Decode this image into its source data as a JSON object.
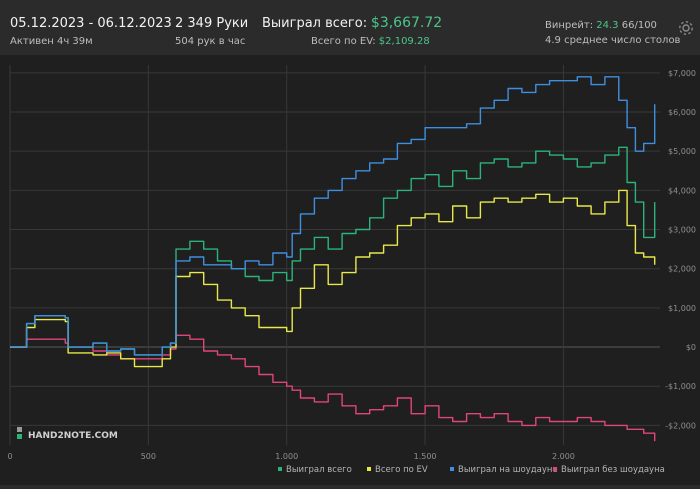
{
  "header": {
    "date_range": "05.12.2023 - 06.12.2023",
    "active_label": "Активен 4ч 39м",
    "hands": "2 349 Руки",
    "hands_per_hour": "504 рук в час",
    "won_total_label": "Выиграл всего:",
    "won_total_value": "$3,667.72",
    "ev_label": "Всего по EV:",
    "ev_value": "$2,109.28",
    "winrate_label": "Винрейт:",
    "winrate_value": "24.3",
    "winrate_suffix": "66/100",
    "avg_tables": "4.9 среднее число столов"
  },
  "logo_text": "HAND2NOTE.COM",
  "colors": {
    "total": "#2bb37a",
    "ev": "#e8e84a",
    "showdown": "#3f8fe0",
    "non_showdown": "#e0457b",
    "positive_text": "#4cc58a"
  },
  "chart_data": {
    "type": "line",
    "xlabel": "",
    "ylabel": "",
    "xlim": [
      0,
      2349
    ],
    "ylim": [
      -2500,
      7200
    ],
    "x_ticks": [
      0,
      500,
      1000,
      1500,
      2000
    ],
    "x_tick_labels": [
      "0",
      "500",
      "1.000",
      "1.500",
      "2.000"
    ],
    "y_ticks": [
      7000,
      6000,
      5000,
      4000,
      3000,
      2000,
      1000,
      0,
      -1000,
      -2000
    ],
    "y_tick_labels": [
      "$7,000",
      "$6,000",
      "$5,000",
      "$4,000",
      "$3,000",
      "$2,000",
      "$1,000",
      "$0",
      "-$1,000",
      "-$2,000"
    ],
    "legend_position": "bottom",
    "x": [
      0,
      60,
      90,
      200,
      210,
      300,
      350,
      400,
      450,
      550,
      580,
      600,
      650,
      700,
      750,
      800,
      850,
      900,
      950,
      1000,
      1020,
      1050,
      1100,
      1150,
      1200,
      1250,
      1300,
      1350,
      1400,
      1450,
      1500,
      1550,
      1600,
      1650,
      1700,
      1750,
      1800,
      1850,
      1900,
      1950,
      2000,
      2050,
      2100,
      2150,
      2200,
      2230,
      2260,
      2290,
      2330
    ],
    "series": [
      {
        "name": "Выиграл всего",
        "values": [
          0,
          600,
          800,
          750,
          0,
          100,
          -100,
          -50,
          -200,
          0,
          100,
          2500,
          2700,
          2500,
          2200,
          2000,
          1800,
          1700,
          1900,
          1700,
          2200,
          2500,
          2800,
          2500,
          2900,
          3000,
          3300,
          3800,
          4000,
          4300,
          4400,
          4100,
          4500,
          4300,
          4700,
          4800,
          4600,
          4700,
          5000,
          4900,
          4800,
          4600,
          4700,
          4900,
          5100,
          4200,
          3700,
          2800,
          3700
        ]
      },
      {
        "name": "Всего по EV",
        "values": [
          0,
          500,
          700,
          650,
          -150,
          -200,
          -150,
          -300,
          -500,
          -300,
          0,
          1800,
          1900,
          1600,
          1200,
          1000,
          800,
          500,
          500,
          400,
          1000,
          1500,
          2100,
          1600,
          1900,
          2300,
          2400,
          2600,
          3100,
          3300,
          3400,
          3200,
          3600,
          3300,
          3700,
          3800,
          3700,
          3800,
          3900,
          3700,
          3800,
          3600,
          3400,
          3700,
          4000,
          3100,
          2400,
          2300,
          2100
        ]
      },
      {
        "name": "Выиграл на шоудауне",
        "values": [
          0,
          600,
          800,
          750,
          0,
          100,
          -100,
          -50,
          -200,
          0,
          100,
          2200,
          2300,
          2100,
          2100,
          2000,
          2200,
          2100,
          2400,
          2300,
          2900,
          3400,
          3800,
          4000,
          4300,
          4500,
          4700,
          4800,
          5200,
          5300,
          5600,
          5600,
          5600,
          5700,
          6100,
          6300,
          6600,
          6500,
          6700,
          6800,
          6800,
          6900,
          6700,
          6900,
          6300,
          5600,
          5000,
          5200,
          6200
        ]
      },
      {
        "name": "Выиграл без шоудауна",
        "values": [
          0,
          200,
          200,
          100,
          0,
          -100,
          -200,
          -300,
          -300,
          -200,
          -50,
          300,
          200,
          -100,
          -200,
          -300,
          -500,
          -700,
          -900,
          -1000,
          -1100,
          -1300,
          -1400,
          -1200,
          -1500,
          -1700,
          -1600,
          -1500,
          -1300,
          -1700,
          -1500,
          -1800,
          -1900,
          -1700,
          -1800,
          -1700,
          -1900,
          -2000,
          -1800,
          -1900,
          -1900,
          -1800,
          -1900,
          -2000,
          -2000,
          -2100,
          -2100,
          -2200,
          -2400
        ]
      }
    ]
  }
}
